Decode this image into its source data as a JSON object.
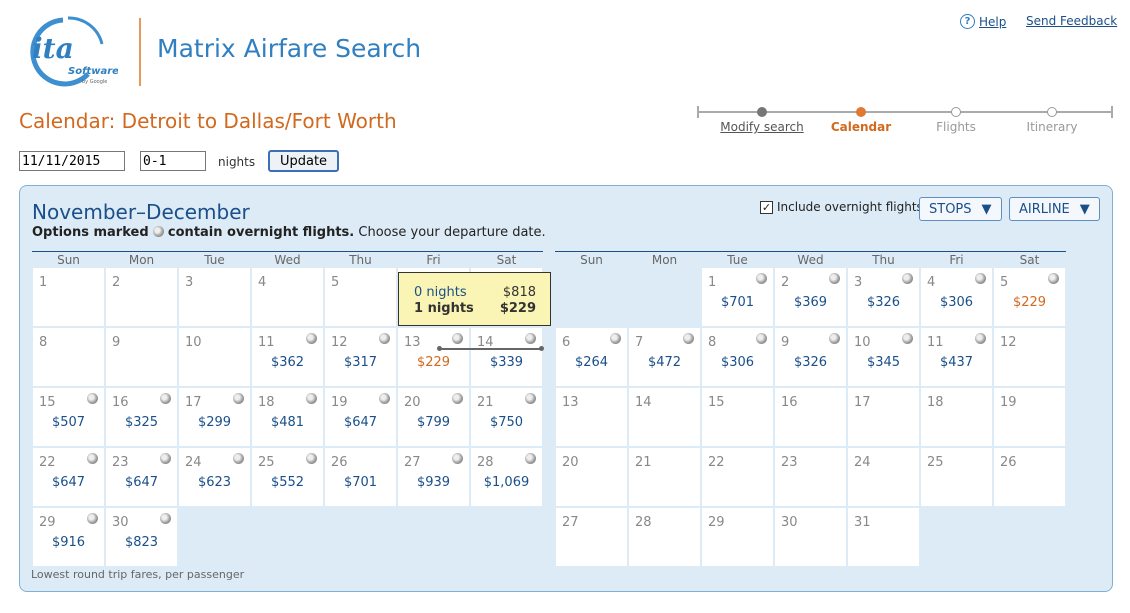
{
  "logo": {
    "text": "ita",
    "sub": "Software",
    "by": "by Google"
  },
  "app_title": "Matrix Airfare Search",
  "help_label": "Help",
  "feedback_label": "Send Feedback",
  "steps": [
    {
      "label": "Modify search",
      "state": "done"
    },
    {
      "label": "Calendar",
      "state": "current"
    },
    {
      "label": "Flights",
      "state": "todo"
    },
    {
      "label": "Itinerary",
      "state": "todo"
    }
  ],
  "page_heading": "Calendar: Detroit to Dallas/Fort Worth",
  "date_input": "11/11/2015",
  "nights_input": "0-1",
  "nights_label": "nights",
  "update_label": "Update",
  "panel": {
    "title": "November–December",
    "note_bold_a": "Options marked",
    "note_bold_b": "contain overnight flights.",
    "note_rest": "Choose your departure date.",
    "overnight_label": "Include overnight flights",
    "overnight_checked": true,
    "stops_label": "STOPS",
    "airline_label": "AIRLINE",
    "footnote": "Lowest round trip fares, per passenger"
  },
  "weekdays": [
    "Sun",
    "Mon",
    "Tue",
    "Wed",
    "Thu",
    "Fri",
    "Sat"
  ],
  "colors": {
    "accent": "#d2691e",
    "price": "#1a4f8a",
    "panel": "#dcebf5"
  },
  "months": [
    {
      "first_weekday": 0,
      "days": 30,
      "prices": {
        "11": "$362",
        "12": "$317",
        "13": "$229",
        "14": "$339",
        "15": "$507",
        "16": "$325",
        "17": "$299",
        "18": "$481",
        "19": "$647",
        "20": "$799",
        "21": "$750",
        "22": "$647",
        "23": "$647",
        "24": "$623",
        "25": "$552",
        "26": "$701",
        "27": "$939",
        "28": "$1,069",
        "29": "$916",
        "30": "$823"
      },
      "lowest": [
        "13"
      ],
      "overnight": [
        "11",
        "12",
        "13",
        "14",
        "15",
        "16",
        "17",
        "18",
        "19",
        "20",
        "21",
        "22",
        "23",
        "24",
        "25",
        "27",
        "28",
        "29",
        "30"
      ]
    },
    {
      "first_weekday": 2,
      "days": 31,
      "prices": {
        "1": "$701",
        "2": "$369",
        "3": "$326",
        "4": "$306",
        "5": "$229",
        "6": "$264",
        "7": "$472",
        "8": "$306",
        "9": "$326",
        "10": "$345",
        "11": "$437"
      },
      "lowest": [
        "5"
      ],
      "overnight": [
        "1",
        "2",
        "3",
        "4",
        "5",
        "6",
        "7",
        "8",
        "9",
        "10",
        "11"
      ]
    }
  ],
  "tooltip": {
    "row1_label": "0 nights",
    "row1_value": "$818",
    "row2_label": "1 nights",
    "row2_value": "$229"
  }
}
